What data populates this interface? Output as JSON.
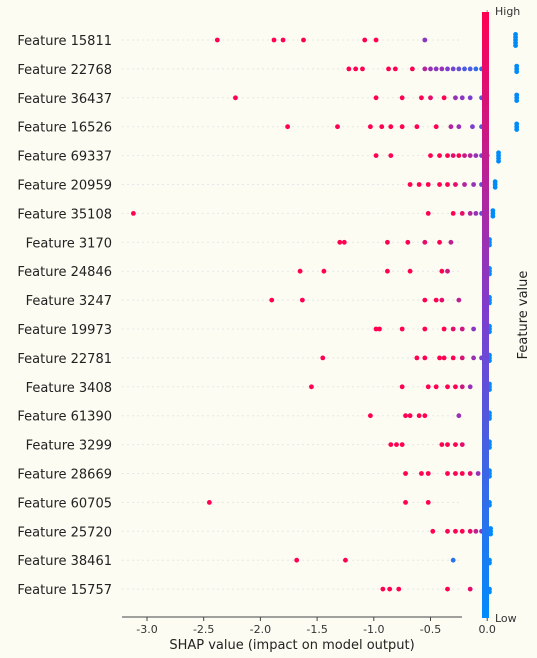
{
  "chart_data": {
    "type": "scatter",
    "subtype": "shap-beeswarm",
    "xlabel": "SHAP value (impact on model output)",
    "xlim": [
      -3.25,
      0.2
    ],
    "xticks": [
      "-3.0",
      "-2.5",
      "-2.0",
      "-1.5",
      "-1.0",
      "-0.5",
      "0.0"
    ],
    "xtick_values": [
      -3.0,
      -2.5,
      -2.0,
      -1.5,
      -1.0,
      -0.5,
      0.0
    ],
    "colorbar": {
      "high_label": "High",
      "low_label": "Low",
      "title": "Feature value",
      "high_color": "#ff0052",
      "low_color": "#008bfb"
    },
    "grid": "horizontal dotted per feature",
    "features": [
      {
        "name": "Feature 15811",
        "points": [
          [
            -2.38,
            1
          ],
          [
            -1.88,
            1
          ],
          [
            -1.8,
            1
          ],
          [
            -1.62,
            1
          ],
          [
            -1.08,
            1
          ],
          [
            -0.98,
            1
          ],
          [
            -0.55,
            0.55
          ],
          [
            0.25,
            0
          ],
          [
            0.25,
            0
          ],
          [
            0.25,
            0
          ],
          [
            0.25,
            0
          ],
          [
            0.25,
            0
          ]
        ]
      },
      {
        "name": "Feature 22768",
        "points": [
          [
            -1.22,
            1
          ],
          [
            -1.16,
            1
          ],
          [
            -1.1,
            1
          ],
          [
            -0.87,
            1
          ],
          [
            -0.81,
            1
          ],
          [
            -0.66,
            1
          ],
          [
            -0.55,
            0.7
          ],
          [
            -0.5,
            0.6
          ],
          [
            -0.45,
            0.55
          ],
          [
            -0.4,
            0.6
          ],
          [
            -0.35,
            0.5
          ],
          [
            -0.3,
            0.45
          ],
          [
            -0.25,
            0.4
          ],
          [
            -0.2,
            0.3
          ],
          [
            -0.15,
            0.3
          ],
          [
            -0.1,
            0.2
          ],
          [
            -0.05,
            0.15
          ],
          [
            0.26,
            0
          ],
          [
            0.26,
            0
          ],
          [
            0.26,
            0
          ]
        ]
      },
      {
        "name": "Feature 36437",
        "points": [
          [
            -2.22,
            1
          ],
          [
            -0.98,
            1
          ],
          [
            -0.75,
            1
          ],
          [
            -0.58,
            1
          ],
          [
            -0.5,
            0.9
          ],
          [
            -0.38,
            1
          ],
          [
            -0.28,
            0.6
          ],
          [
            -0.22,
            0.55
          ],
          [
            -0.15,
            0.5
          ],
          [
            -0.05,
            0.3
          ],
          [
            0.26,
            0
          ],
          [
            0.26,
            0
          ],
          [
            0.26,
            0
          ]
        ]
      },
      {
        "name": "Feature 16526",
        "points": [
          [
            -1.76,
            1
          ],
          [
            -1.32,
            1
          ],
          [
            -1.03,
            1
          ],
          [
            -0.93,
            1
          ],
          [
            -0.85,
            1
          ],
          [
            -0.75,
            1
          ],
          [
            -0.62,
            1
          ],
          [
            -0.45,
            1
          ],
          [
            -0.32,
            0.7
          ],
          [
            -0.25,
            0.6
          ],
          [
            -0.13,
            0.5
          ],
          [
            -0.05,
            0.3
          ],
          [
            0.26,
            0
          ],
          [
            0.26,
            0
          ],
          [
            0.26,
            0
          ]
        ]
      },
      {
        "name": "Feature 69337",
        "points": [
          [
            -0.98,
            1
          ],
          [
            -0.85,
            1
          ],
          [
            -0.5,
            1
          ],
          [
            -0.42,
            1
          ],
          [
            -0.35,
            1
          ],
          [
            -0.3,
            0.9
          ],
          [
            -0.25,
            1
          ],
          [
            -0.2,
            0.8
          ],
          [
            -0.15,
            0.7
          ],
          [
            -0.1,
            0.6
          ],
          [
            -0.05,
            0.45
          ],
          [
            0.0,
            0.35
          ],
          [
            0.1,
            0
          ],
          [
            0.1,
            0
          ],
          [
            0.1,
            0
          ],
          [
            0.1,
            0
          ]
        ]
      },
      {
        "name": "Feature 20959",
        "points": [
          [
            -0.68,
            1
          ],
          [
            -0.6,
            1
          ],
          [
            -0.52,
            1
          ],
          [
            -0.42,
            1
          ],
          [
            -0.35,
            1
          ],
          [
            -0.28,
            0.9
          ],
          [
            -0.2,
            0.7
          ],
          [
            -0.12,
            0.6
          ],
          [
            -0.05,
            0.4
          ],
          [
            0.07,
            0
          ],
          [
            0.07,
            0
          ],
          [
            0.07,
            0
          ]
        ]
      },
      {
        "name": "Feature 35108",
        "points": [
          [
            -3.12,
            1
          ],
          [
            -0.52,
            1
          ],
          [
            -0.3,
            1
          ],
          [
            -0.22,
            0.9
          ],
          [
            -0.15,
            0.7
          ],
          [
            -0.1,
            0.6
          ],
          [
            -0.05,
            0.4
          ],
          [
            0.05,
            0
          ],
          [
            0.05,
            0
          ],
          [
            0.05,
            0
          ]
        ]
      },
      {
        "name": "Feature 3170",
        "points": [
          [
            -1.3,
            1
          ],
          [
            -1.26,
            1
          ],
          [
            -0.88,
            1
          ],
          [
            -0.7,
            1
          ],
          [
            -0.55,
            0.9
          ],
          [
            -0.42,
            1
          ],
          [
            -0.32,
            0.75
          ],
          [
            0.02,
            0
          ],
          [
            0.02,
            0
          ],
          [
            0.02,
            0
          ]
        ]
      },
      {
        "name": "Feature 24846",
        "points": [
          [
            -1.65,
            1
          ],
          [
            -1.44,
            1
          ],
          [
            -0.88,
            1
          ],
          [
            -0.68,
            1
          ],
          [
            -0.4,
            1
          ],
          [
            -0.35,
            0.8
          ],
          [
            0.02,
            0
          ],
          [
            0.02,
            0
          ],
          [
            0.02,
            0
          ]
        ]
      },
      {
        "name": "Feature 3247",
        "points": [
          [
            -1.9,
            1
          ],
          [
            -1.63,
            1
          ],
          [
            -0.55,
            1
          ],
          [
            -0.45,
            1
          ],
          [
            -0.4,
            0.9
          ],
          [
            -0.25,
            0.75
          ],
          [
            0.02,
            0
          ],
          [
            0.02,
            0
          ],
          [
            0.02,
            0
          ]
        ]
      },
      {
        "name": "Feature 19973",
        "points": [
          [
            -0.98,
            1
          ],
          [
            -0.95,
            1
          ],
          [
            -0.75,
            1
          ],
          [
            -0.55,
            1
          ],
          [
            -0.38,
            1
          ],
          [
            -0.3,
            0.9
          ],
          [
            -0.22,
            0.8
          ],
          [
            -0.12,
            0.55
          ],
          [
            0.02,
            0
          ],
          [
            0.02,
            0
          ],
          [
            0.02,
            0
          ]
        ]
      },
      {
        "name": "Feature 22781",
        "points": [
          [
            -1.45,
            1
          ],
          [
            -0.62,
            1
          ],
          [
            -0.55,
            1
          ],
          [
            -0.42,
            1
          ],
          [
            -0.38,
            1
          ],
          [
            -0.3,
            1
          ],
          [
            -0.22,
            0.85
          ],
          [
            -0.12,
            0.6
          ],
          [
            -0.05,
            0.45
          ],
          [
            0.02,
            0
          ],
          [
            0.02,
            0
          ],
          [
            0.02,
            0
          ]
        ]
      },
      {
        "name": "Feature 3408",
        "points": [
          [
            -1.55,
            1
          ],
          [
            -0.75,
            1
          ],
          [
            -0.52,
            1
          ],
          [
            -0.45,
            1
          ],
          [
            -0.35,
            1
          ],
          [
            -0.28,
            1
          ],
          [
            -0.22,
            0.8
          ],
          [
            -0.15,
            0.6
          ],
          [
            0.02,
            0
          ],
          [
            0.02,
            0
          ],
          [
            0.02,
            0
          ]
        ]
      },
      {
        "name": "Feature 61390",
        "points": [
          [
            -1.03,
            1
          ],
          [
            -0.72,
            1
          ],
          [
            -0.68,
            1
          ],
          [
            -0.6,
            1
          ],
          [
            -0.55,
            1
          ],
          [
            -0.25,
            0.6
          ],
          [
            0.02,
            0
          ],
          [
            0.02,
            0
          ],
          [
            0.02,
            0
          ]
        ]
      },
      {
        "name": "Feature 3299",
        "points": [
          [
            -0.85,
            1
          ],
          [
            -0.8,
            1
          ],
          [
            -0.75,
            1
          ],
          [
            -0.4,
            1
          ],
          [
            -0.35,
            1
          ],
          [
            -0.28,
            1
          ],
          [
            -0.22,
            0.9
          ],
          [
            0.02,
            0
          ],
          [
            0.02,
            0
          ],
          [
            0.02,
            0
          ]
        ]
      },
      {
        "name": "Feature 28669",
        "points": [
          [
            -0.72,
            1
          ],
          [
            -0.58,
            1
          ],
          [
            -0.52,
            1
          ],
          [
            -0.35,
            1
          ],
          [
            -0.28,
            1
          ],
          [
            -0.22,
            1
          ],
          [
            -0.15,
            0.9
          ],
          [
            -0.08,
            0.6
          ],
          [
            0.02,
            0
          ],
          [
            0.02,
            0
          ],
          [
            0.02,
            0
          ]
        ]
      },
      {
        "name": "Feature 60705",
        "points": [
          [
            -2.45,
            1
          ],
          [
            -0.72,
            1
          ],
          [
            -0.52,
            1
          ],
          [
            0.02,
            0
          ],
          [
            0.02,
            0
          ]
        ]
      },
      {
        "name": "Feature 25720",
        "points": [
          [
            -0.48,
            1
          ],
          [
            -0.35,
            1
          ],
          [
            -0.28,
            1
          ],
          [
            -0.22,
            1
          ],
          [
            -0.15,
            0.9
          ],
          [
            -0.1,
            0.75
          ],
          [
            -0.05,
            0.55
          ],
          [
            0.0,
            0.4
          ],
          [
            0.03,
            0
          ],
          [
            0.03,
            0
          ],
          [
            0.03,
            0
          ]
        ]
      },
      {
        "name": "Feature 38461",
        "points": [
          [
            -1.68,
            1
          ],
          [
            -1.25,
            1
          ],
          [
            -0.3,
            0.15
          ],
          [
            0.02,
            0
          ],
          [
            0.02,
            0
          ]
        ]
      },
      {
        "name": "Feature 15757",
        "points": [
          [
            -0.92,
            1
          ],
          [
            -0.86,
            1
          ],
          [
            -0.78,
            1
          ],
          [
            -0.35,
            1
          ],
          [
            -0.15,
            0.9
          ],
          [
            0.02,
            0
          ],
          [
            0.02,
            0
          ]
        ]
      }
    ]
  }
}
